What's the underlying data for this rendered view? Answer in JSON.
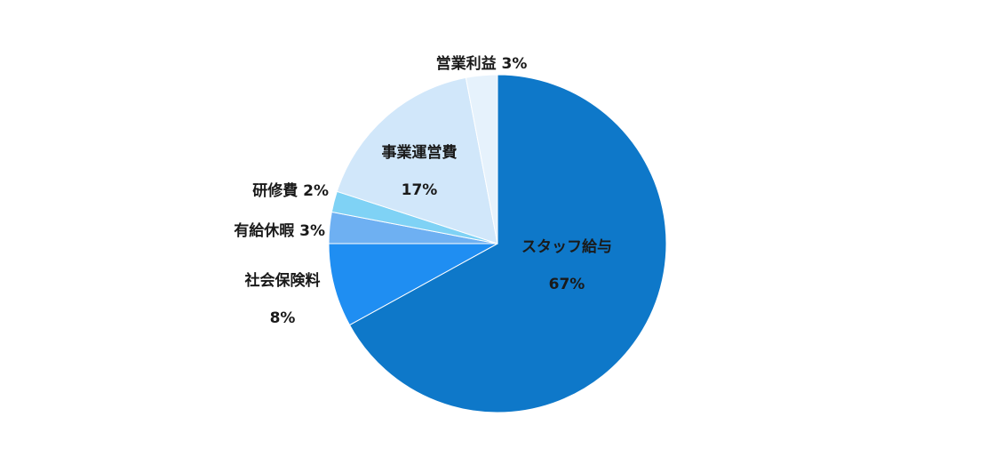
{
  "chart_data": {
    "type": "pie",
    "title": "",
    "slices": [
      {
        "label": "スタッフ給与",
        "value": 67,
        "color": "#0e78c9",
        "text_line1": "スタッフ給与",
        "text_line2": "67%"
      },
      {
        "label": "社会保険料",
        "value": 8,
        "color": "#1f8ef2",
        "text_line1": "社会保険料",
        "text_line2": "8%"
      },
      {
        "label": "有給休暇",
        "value": 3,
        "color": "#6eb0f2",
        "text_line1": "有給休暇 3%",
        "text_line2": ""
      },
      {
        "label": "研修費",
        "value": 2,
        "color": "#7fd2f5",
        "text_line1": "研修費 2%",
        "text_line2": ""
      },
      {
        "label": "事業運営費",
        "value": 17,
        "color": "#d1e7fa",
        "text_line1": "事業運営費",
        "text_line2": "17%"
      },
      {
        "label": "営業利益",
        "value": 3,
        "color": "#e6f2fc",
        "text_line1": "営業利益 3%",
        "text_line2": ""
      }
    ]
  }
}
